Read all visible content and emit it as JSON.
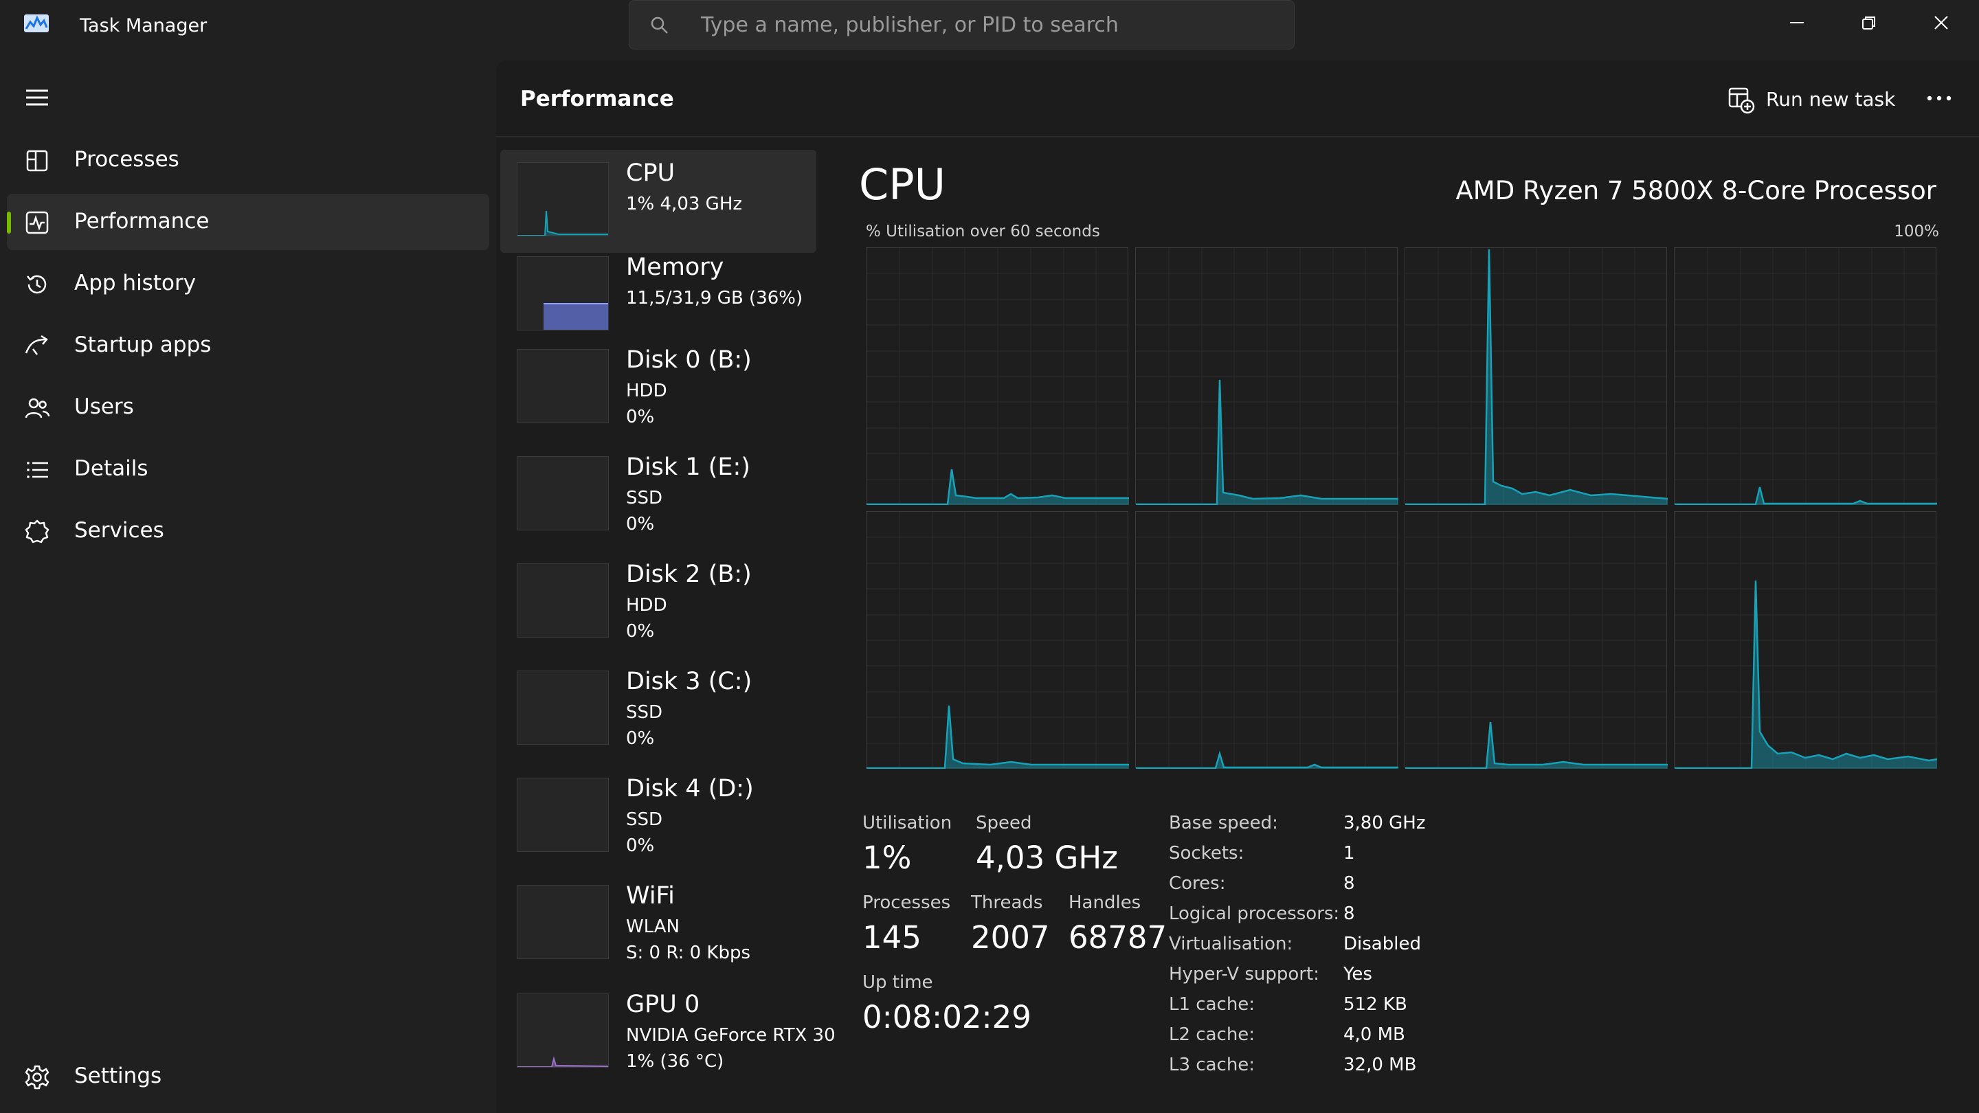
{
  "window": {
    "title": "Task Manager",
    "search_placeholder": "Type a name, publisher, or PID to search"
  },
  "sidebar": {
    "items": [
      {
        "label": "Processes",
        "icon": "processes-icon"
      },
      {
        "label": "Performance",
        "icon": "performance-icon",
        "active": true
      },
      {
        "label": "App history",
        "icon": "history-icon"
      },
      {
        "label": "Startup apps",
        "icon": "startup-icon"
      },
      {
        "label": "Users",
        "icon": "users-icon"
      },
      {
        "label": "Details",
        "icon": "details-icon"
      },
      {
        "label": "Services",
        "icon": "services-icon"
      }
    ],
    "settings_label": "Settings"
  },
  "header": {
    "title": "Performance",
    "run_task_label": "Run new task"
  },
  "resources": [
    {
      "name": "CPU",
      "line1": "1%  4,03 GHz",
      "line2": ""
    },
    {
      "name": "Memory",
      "line1": "11,5/31,9 GB (36%)",
      "line2": ""
    },
    {
      "name": "Disk 0 (B:)",
      "line1": "HDD",
      "line2": "0%"
    },
    {
      "name": "Disk 1 (E:)",
      "line1": "SSD",
      "line2": "0%"
    },
    {
      "name": "Disk 2 (B:)",
      "line1": "HDD",
      "line2": "0%"
    },
    {
      "name": "Disk 3 (C:)",
      "line1": "SSD",
      "line2": "0%"
    },
    {
      "name": "Disk 4 (D:)",
      "line1": "SSD",
      "line2": "0%"
    },
    {
      "name": "WiFi",
      "line1": "WLAN",
      "line2": "S: 0  R: 0 Kbps"
    },
    {
      "name": "GPU 0",
      "line1": "NVIDIA GeForce RTX 30",
      "line2": "1%  (36 °C)"
    }
  ],
  "cpu": {
    "heading": "CPU",
    "model": "AMD Ryzen 7 5800X 8-Core Processor",
    "graph_label": "% Utilisation over 60 seconds",
    "graph_max": "100%",
    "stats": {
      "utilisation_label": "Utilisation",
      "utilisation": "1%",
      "speed_label": "Speed",
      "speed": "4,03 GHz",
      "processes_label": "Processes",
      "processes": "145",
      "threads_label": "Threads",
      "threads": "2007",
      "handles_label": "Handles",
      "handles": "68787",
      "uptime_label": "Up time",
      "uptime": "0:08:02:29"
    },
    "info": [
      {
        "key": "Base speed:",
        "value": "3,80 GHz"
      },
      {
        "key": "Sockets:",
        "value": "1"
      },
      {
        "key": "Cores:",
        "value": "8"
      },
      {
        "key": "Logical processors:",
        "value": "8"
      },
      {
        "key": "Virtualisation:",
        "value": "Disabled"
      },
      {
        "key": "Hyper-V support:",
        "value": "Yes"
      },
      {
        "key": "L1 cache:",
        "value": "512 KB"
      },
      {
        "key": "L2 cache:",
        "value": "4,0 MB"
      },
      {
        "key": "L3 cache:",
        "value": "32,0 MB"
      }
    ]
  },
  "colors": {
    "accent": "#76b900",
    "cpu_graph": "#17a2b8",
    "memory_graph": "#5c6bc0",
    "gpu_graph": "#9c6fc9"
  }
}
